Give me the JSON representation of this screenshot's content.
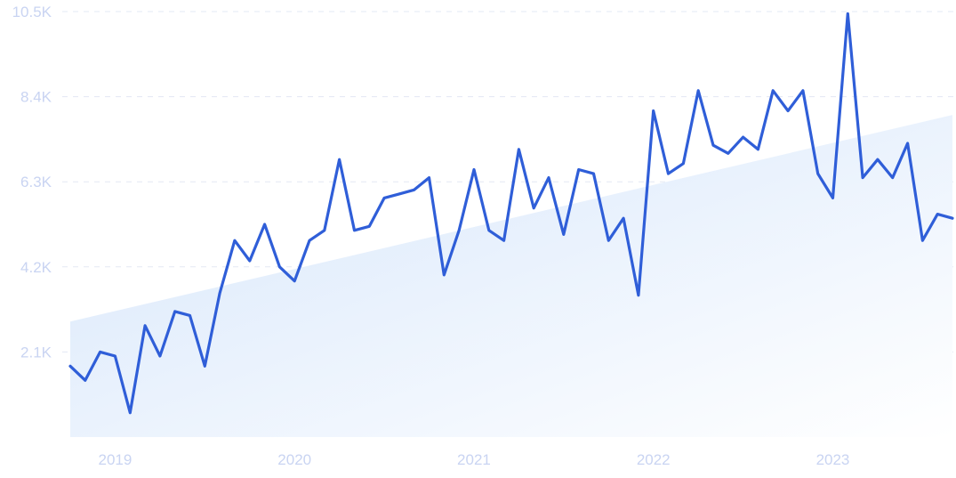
{
  "chart_data": {
    "type": "line",
    "x_axis": {
      "type": "time",
      "range": [
        "2018-10-01",
        "2023-09-01"
      ],
      "tick_labels": [
        "2019",
        "2020",
        "2021",
        "2022",
        "2023"
      ],
      "tick_dates": [
        "2019-01-01",
        "2020-01-01",
        "2021-01-01",
        "2022-01-01",
        "2023-01-01"
      ]
    },
    "y_axis": {
      "ylim": [
        0,
        10500
      ],
      "ticks": [
        2100,
        4200,
        6300,
        8400,
        10500
      ],
      "tick_labels": [
        "2.1K",
        "4.2K",
        "6.3K",
        "8.4K",
        "10.5K"
      ]
    },
    "grid": true,
    "legend": "none",
    "series": [
      {
        "x": [
          "2018-10",
          "2018-11",
          "2018-12",
          "2019-01",
          "2019-02",
          "2019-03",
          "2019-04",
          "2019-05",
          "2019-06",
          "2019-07",
          "2019-08",
          "2019-09",
          "2019-10",
          "2019-11",
          "2019-12",
          "2020-01",
          "2020-02",
          "2020-03",
          "2020-04",
          "2020-05",
          "2020-06",
          "2020-07",
          "2020-08",
          "2020-09",
          "2020-10",
          "2020-11",
          "2020-12",
          "2021-01",
          "2021-02",
          "2021-03",
          "2021-04",
          "2021-05",
          "2021-06",
          "2021-07",
          "2021-08",
          "2021-09",
          "2021-10",
          "2021-11",
          "2021-12",
          "2022-01",
          "2022-02",
          "2022-03",
          "2022-04",
          "2022-05",
          "2022-06",
          "2022-07",
          "2022-08",
          "2022-09",
          "2022-10",
          "2022-11",
          "2022-12",
          "2023-01",
          "2023-02",
          "2023-03",
          "2023-04",
          "2023-05",
          "2023-06",
          "2023-07",
          "2023-08",
          "2023-09"
        ],
        "values": [
          1750,
          1400,
          2100,
          2000,
          600,
          2750,
          2000,
          3100,
          3000,
          1750,
          3550,
          4850,
          4350,
          5250,
          4200,
          3850,
          4850,
          5100,
          6850,
          5100,
          5200,
          5900,
          6000,
          6100,
          6400,
          4000,
          5100,
          6600,
          5100,
          4850,
          7100,
          5650,
          6400,
          5000,
          6600,
          6500,
          4850,
          5400,
          3500,
          8050,
          6500,
          6750,
          8550,
          7200,
          7000,
          7400,
          7100,
          8550,
          8050,
          8550,
          6500,
          5900,
          10450,
          6400,
          6850,
          6400,
          7250,
          4850,
          5500,
          5400
        ],
        "color": "#2f5ed8"
      }
    ],
    "trend": {
      "start": 2850,
      "end": 7950,
      "color": "#d6e6fb"
    }
  }
}
